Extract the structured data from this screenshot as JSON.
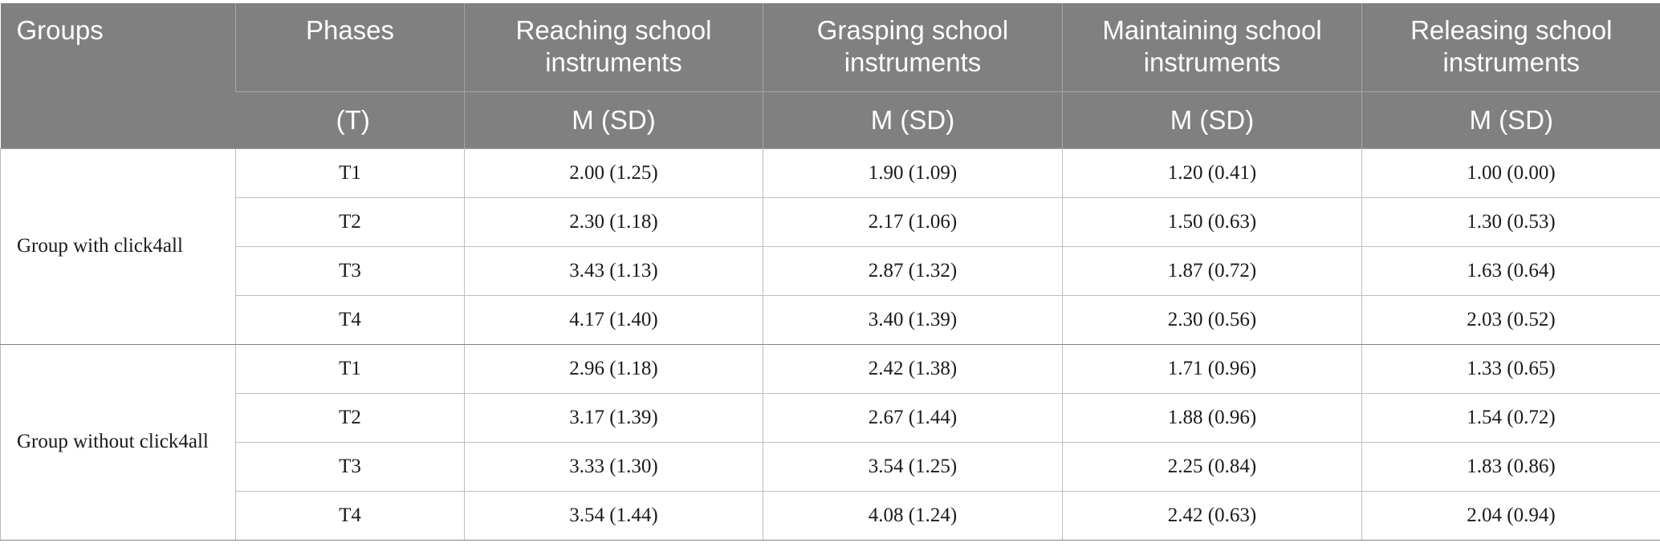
{
  "table": {
    "header_row1": [
      "Groups",
      "Phases",
      "Reaching school instruments",
      "Grasping school instruments",
      "Maintaining school instruments",
      "Releasing school instruments"
    ],
    "header_row2": [
      "(T)",
      "M (SD)",
      "M (SD)",
      "M (SD)",
      "M (SD)"
    ],
    "groups": [
      {
        "name": "Group with click4all",
        "rows": [
          {
            "phase": "T1",
            "values": [
              "2.00 (1.25)",
              "1.90 (1.09)",
              "1.20 (0.41)",
              "1.00 (0.00)"
            ]
          },
          {
            "phase": "T2",
            "values": [
              "2.30 (1.18)",
              "2.17 (1.06)",
              "1.50 (0.63)",
              "1.30 (0.53)"
            ]
          },
          {
            "phase": "T3",
            "values": [
              "3.43 (1.13)",
              "2.87 (1.32)",
              "1.87 (0.72)",
              "1.63 (0.64)"
            ]
          },
          {
            "phase": "T4",
            "values": [
              "4.17 (1.40)",
              "3.40 (1.39)",
              "2.30 (0.56)",
              "2.03 (0.52)"
            ]
          }
        ]
      },
      {
        "name": "Group without click4all",
        "rows": [
          {
            "phase": "T1",
            "values": [
              "2.96 (1.18)",
              "2.42 (1.38)",
              "1.71 (0.96)",
              "1.33 (0.65)"
            ]
          },
          {
            "phase": "T2",
            "values": [
              "3.17 (1.39)",
              "2.67 (1.44)",
              "1.88 (0.96)",
              "1.54 (0.72)"
            ]
          },
          {
            "phase": "T3",
            "values": [
              "3.33 (1.30)",
              "3.54 (1.25)",
              "2.25 (0.84)",
              "1.83 (0.86)"
            ]
          },
          {
            "phase": "T4",
            "values": [
              "3.54 (1.44)",
              "4.08 (1.24)",
              "2.42 (0.63)",
              "2.04 (0.94)"
            ]
          }
        ]
      }
    ]
  }
}
